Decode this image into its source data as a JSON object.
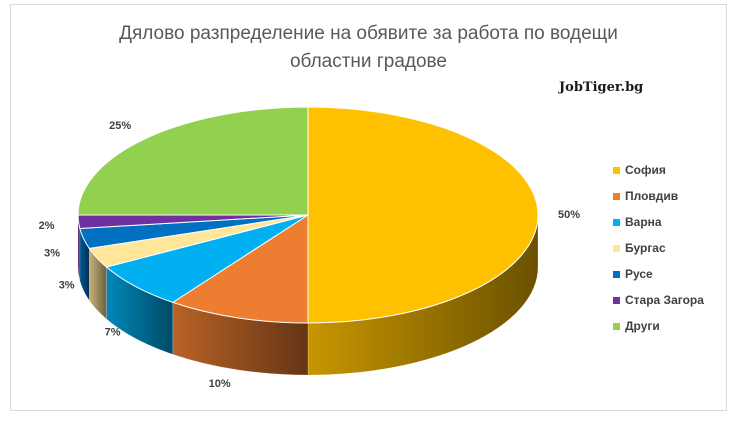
{
  "chart_data": {
    "type": "pie",
    "title_line1": "Дялово разпределение на обявите за работа по водещи",
    "title_line2": "областни градове",
    "watermark": "JobTiger.bg",
    "categories": [
      "София",
      "Пловдив",
      "Варна",
      "Бургас",
      "Русе",
      "Стара Загора",
      "Други"
    ],
    "values": [
      50,
      10,
      7,
      3,
      3,
      2,
      25
    ],
    "labels": [
      "50%",
      "10%",
      "7%",
      "3%",
      "3%",
      "2%",
      "25%"
    ],
    "colors": [
      "#FFC000",
      "#ED7D31",
      "#00B0F0",
      "#FFE699",
      "#0070C0",
      "#7030A0",
      "#92D050"
    ],
    "legend_position": "right",
    "style": "3d-pie"
  }
}
